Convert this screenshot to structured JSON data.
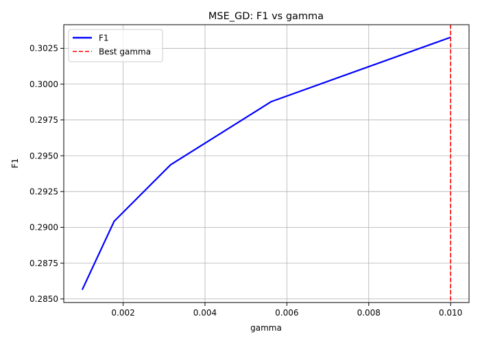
{
  "chart_data": {
    "type": "line",
    "title": "MSE_GD: F1 vs gamma",
    "xlabel": "gamma",
    "ylabel": "F1",
    "xlim": [
      0.00055,
      0.01045
    ],
    "ylim": [
      0.28475,
      0.30415
    ],
    "xticks": [
      0.002,
      0.004,
      0.006,
      0.008,
      0.01
    ],
    "xtick_labels": [
      "0.002",
      "0.004",
      "0.006",
      "0.008",
      "0.010"
    ],
    "yticks": [
      0.285,
      0.2875,
      0.29,
      0.2925,
      0.295,
      0.2975,
      0.3,
      0.3025
    ],
    "ytick_labels": [
      "0.2850",
      "0.2875",
      "0.2900",
      "0.2925",
      "0.2950",
      "0.2975",
      "0.3000",
      "0.3025"
    ],
    "grid": true,
    "legend_position": "upper-left",
    "series": [
      {
        "name": "F1",
        "color": "#0000ff",
        "style": "solid",
        "x": [
          0.001,
          0.00178,
          0.00316,
          0.00562,
          0.01
        ],
        "y": [
          0.28564,
          0.29042,
          0.29437,
          0.29878,
          0.30327
        ]
      }
    ],
    "vlines": [
      {
        "name": "Best gamma",
        "x": 0.01,
        "color": "#ff0000",
        "style": "dashed"
      }
    ]
  }
}
